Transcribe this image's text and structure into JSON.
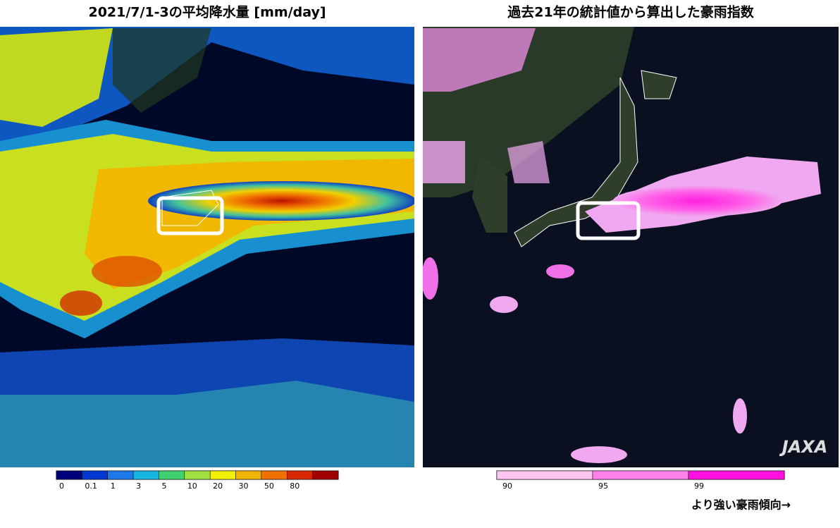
{
  "panels": [
    {
      "title": "2021/7/1-3の平均降水量 [mm/day]",
      "legend": {
        "labels": [
          "0",
          "0.1",
          "1",
          "3",
          "5",
          "10",
          "20",
          "30",
          "50",
          "80"
        ],
        "colors": [
          "#00007a",
          "#0038d0",
          "#1e78e8",
          "#18b4e0",
          "#40d070",
          "#a0e040",
          "#f0f000",
          "#f0b400",
          "#f07000",
          "#d82800",
          "#a00000"
        ]
      }
    },
    {
      "title": "過去21年の統計値から算出した豪雨指数",
      "legend": {
        "labels": [
          "90",
          "95",
          "99"
        ],
        "colors": [
          "#ffc4f0",
          "#ff80e8",
          "#ff10e0"
        ]
      },
      "note": "より強い豪雨傾向→"
    }
  ],
  "logo": "JAXA"
}
